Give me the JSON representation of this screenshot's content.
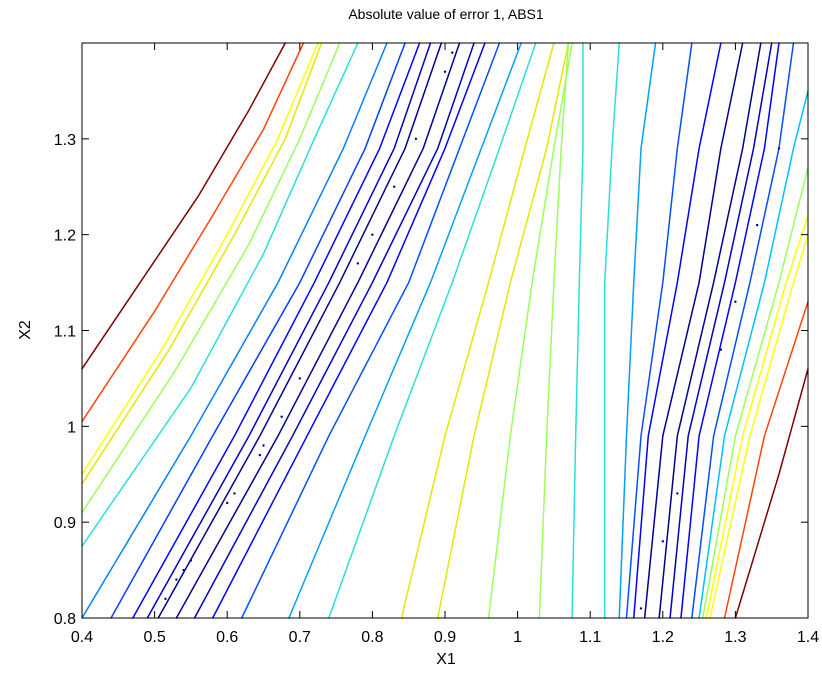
{
  "chart_data": {
    "type": "contour",
    "title": "Absolute value of error 1, ABS1",
    "xlabel": "X1",
    "ylabel": "X2",
    "xlim": [
      0.4,
      1.4
    ],
    "ylim": [
      0.8,
      1.4
    ],
    "x_ticks": [
      0.4,
      0.5,
      0.6,
      0.7,
      0.8,
      0.9,
      1,
      1.1,
      1.2,
      1.3,
      1.4
    ],
    "x_tick_labels": [
      "0.4",
      "0.5",
      "0.6",
      "0.7",
      "0.8",
      "0.9",
      "1",
      "1.1",
      "1.2",
      "1.3",
      "1.4"
    ],
    "y_ticks": [
      0.8,
      0.9,
      1,
      1.1,
      1.2,
      1.3
    ],
    "y_tick_labels": [
      "0.8",
      "0.9",
      "1",
      "1.1",
      "1.2",
      "1.3"
    ],
    "grid": false,
    "colormap": "jet",
    "series": [
      {
        "color": "#7f0000",
        "points": [
          [
            0.4,
            1.06
          ],
          [
            0.48,
            1.15
          ],
          [
            0.56,
            1.24
          ],
          [
            0.63,
            1.33
          ],
          [
            0.68,
            1.4
          ]
        ]
      },
      {
        "color": "#ff4500",
        "points": [
          [
            0.4,
            1.005
          ],
          [
            0.5,
            1.12
          ],
          [
            0.58,
            1.22
          ],
          [
            0.65,
            1.31
          ],
          [
            0.705,
            1.4
          ]
        ]
      },
      {
        "color": "#ffff00",
        "points": [
          [
            0.4,
            0.95
          ],
          [
            0.51,
            1.08
          ],
          [
            0.6,
            1.2
          ],
          [
            0.67,
            1.3
          ],
          [
            0.725,
            1.4
          ]
        ]
      },
      {
        "color": "#e6e600",
        "points": [
          [
            0.4,
            0.94
          ],
          [
            0.52,
            1.08
          ],
          [
            0.61,
            1.2
          ],
          [
            0.68,
            1.3
          ],
          [
            0.73,
            1.4
          ]
        ]
      },
      {
        "color": "#9bff5b",
        "points": [
          [
            0.4,
            0.91
          ],
          [
            0.53,
            1.06
          ],
          [
            0.63,
            1.19
          ],
          [
            0.7,
            1.3
          ],
          [
            0.755,
            1.4
          ]
        ]
      },
      {
        "color": "#28e0d8",
        "points": [
          [
            0.4,
            0.875
          ],
          [
            0.55,
            1.04
          ],
          [
            0.65,
            1.18
          ],
          [
            0.72,
            1.3
          ],
          [
            0.78,
            1.4
          ]
        ]
      },
      {
        "color": "#0080ff",
        "points": [
          [
            0.4,
            0.8
          ],
          [
            0.55,
            0.99
          ],
          [
            0.67,
            1.15
          ],
          [
            0.76,
            1.29
          ],
          [
            0.82,
            1.4
          ]
        ]
      },
      {
        "color": "#0040ff",
        "points": [
          [
            0.44,
            0.8
          ],
          [
            0.58,
            0.99
          ],
          [
            0.7,
            1.15
          ],
          [
            0.79,
            1.29
          ],
          [
            0.845,
            1.4
          ]
        ]
      },
      {
        "color": "#0000ff",
        "points": [
          [
            0.47,
            0.8
          ],
          [
            0.61,
            0.99
          ],
          [
            0.72,
            1.15
          ],
          [
            0.81,
            1.29
          ],
          [
            0.865,
            1.4
          ]
        ]
      },
      {
        "color": "#0000c0",
        "points": [
          [
            0.49,
            0.8
          ],
          [
            0.63,
            0.99
          ],
          [
            0.74,
            1.15
          ],
          [
            0.83,
            1.29
          ],
          [
            0.88,
            1.4
          ]
        ]
      },
      {
        "color": "#00008f",
        "points": [
          [
            0.505,
            0.8
          ],
          [
            0.645,
            0.99
          ],
          [
            0.755,
            1.15
          ],
          [
            0.845,
            1.29
          ],
          [
            0.895,
            1.4
          ]
        ]
      },
      {
        "color": "#00008f",
        "points": [
          [
            0.53,
            0.8
          ],
          [
            0.67,
            0.99
          ],
          [
            0.78,
            1.15
          ],
          [
            0.87,
            1.29
          ],
          [
            0.92,
            1.4
          ]
        ]
      },
      {
        "color": "#0000c0",
        "points": [
          [
            0.555,
            0.8
          ],
          [
            0.69,
            0.99
          ],
          [
            0.8,
            1.15
          ],
          [
            0.89,
            1.29
          ],
          [
            0.94,
            1.4
          ]
        ]
      },
      {
        "color": "#0000ff",
        "points": [
          [
            0.58,
            0.8
          ],
          [
            0.71,
            0.99
          ],
          [
            0.82,
            1.15
          ],
          [
            0.9,
            1.29
          ],
          [
            0.955,
            1.4
          ]
        ]
      },
      {
        "color": "#0050ff",
        "points": [
          [
            0.62,
            0.8
          ],
          [
            0.74,
            0.99
          ],
          [
            0.85,
            1.15
          ],
          [
            0.92,
            1.29
          ],
          [
            0.975,
            1.4
          ]
        ]
      },
      {
        "color": "#00a0ff",
        "points": [
          [
            0.685,
            0.8
          ],
          [
            0.79,
            0.99
          ],
          [
            0.88,
            1.15
          ],
          [
            0.95,
            1.29
          ],
          [
            1.005,
            1.4
          ]
        ]
      },
      {
        "color": "#28e0d8",
        "points": [
          [
            0.74,
            0.8
          ],
          [
            0.83,
            0.99
          ],
          [
            0.91,
            1.15
          ],
          [
            0.975,
            1.29
          ],
          [
            1.025,
            1.4
          ]
        ]
      },
      {
        "color": "#e6e600",
        "points": [
          [
            0.84,
            0.8
          ],
          [
            0.9,
            0.99
          ],
          [
            0.96,
            1.15
          ],
          [
            1.01,
            1.29
          ],
          [
            1.05,
            1.4
          ]
        ]
      },
      {
        "color": "#e6e600",
        "points": [
          [
            0.89,
            0.8
          ],
          [
            0.94,
            0.99
          ],
          [
            0.99,
            1.15
          ],
          [
            1.04,
            1.29
          ],
          [
            1.07,
            1.4
          ]
        ]
      },
      {
        "color": "#9bff5b",
        "points": [
          [
            0.96,
            0.8
          ],
          [
            0.99,
            0.99
          ],
          [
            1.02,
            1.15
          ],
          [
            1.05,
            1.29
          ],
          [
            1.075,
            1.4
          ]
        ]
      },
      {
        "color": "#9bff5b",
        "points": [
          [
            1.03,
            0.8
          ],
          [
            1.04,
            0.99
          ],
          [
            1.05,
            1.15
          ],
          [
            1.06,
            1.29
          ],
          [
            1.07,
            1.4
          ]
        ]
      },
      {
        "color": "#28e0d8",
        "points": [
          [
            1.075,
            0.8
          ],
          [
            1.08,
            0.99
          ],
          [
            1.085,
            1.15
          ],
          [
            1.09,
            1.29
          ],
          [
            1.09,
            1.4
          ]
        ]
      },
      {
        "color": "#28e0d8",
        "points": [
          [
            1.12,
            0.8
          ],
          [
            1.12,
            0.99
          ],
          [
            1.12,
            1.15
          ],
          [
            1.13,
            1.29
          ],
          [
            1.14,
            1.4
          ]
        ]
      },
      {
        "color": "#00a0ff",
        "points": [
          [
            1.14,
            0.8
          ],
          [
            1.15,
            0.99
          ],
          [
            1.16,
            1.15
          ],
          [
            1.17,
            1.29
          ],
          [
            1.19,
            1.4
          ]
        ]
      },
      {
        "color": "#0050ff",
        "points": [
          [
            1.15,
            0.8
          ],
          [
            1.17,
            0.99
          ],
          [
            1.2,
            1.15
          ],
          [
            1.22,
            1.29
          ],
          [
            1.24,
            1.4
          ]
        ]
      },
      {
        "color": "#0000ff",
        "points": [
          [
            1.16,
            0.8
          ],
          [
            1.18,
            0.99
          ],
          [
            1.22,
            1.15
          ],
          [
            1.25,
            1.29
          ],
          [
            1.28,
            1.4
          ]
        ]
      },
      {
        "color": "#00008f",
        "points": [
          [
            1.175,
            0.8
          ],
          [
            1.2,
            0.99
          ],
          [
            1.25,
            1.15
          ],
          [
            1.28,
            1.29
          ],
          [
            1.31,
            1.4
          ]
        ]
      },
      {
        "color": "#00008f",
        "points": [
          [
            1.195,
            0.8
          ],
          [
            1.22,
            0.99
          ],
          [
            1.27,
            1.15
          ],
          [
            1.31,
            1.29
          ],
          [
            1.335,
            1.4
          ]
        ]
      },
      {
        "color": "#0000c0",
        "points": [
          [
            1.21,
            0.8
          ],
          [
            1.235,
            0.99
          ],
          [
            1.285,
            1.15
          ],
          [
            1.325,
            1.29
          ],
          [
            1.35,
            1.4
          ]
        ]
      },
      {
        "color": "#0000ff",
        "points": [
          [
            1.225,
            0.8
          ],
          [
            1.25,
            0.99
          ],
          [
            1.3,
            1.15
          ],
          [
            1.34,
            1.29
          ],
          [
            1.36,
            1.4
          ]
        ]
      },
      {
        "color": "#0050ff",
        "points": [
          [
            1.24,
            0.8
          ],
          [
            1.27,
            0.99
          ],
          [
            1.32,
            1.15
          ],
          [
            1.36,
            1.29
          ],
          [
            1.38,
            1.4
          ]
        ]
      },
      {
        "color": "#00c0ff",
        "points": [
          [
            1.25,
            0.8
          ],
          [
            1.285,
            0.99
          ],
          [
            1.34,
            1.15
          ],
          [
            1.38,
            1.29
          ],
          [
            1.4,
            1.35
          ]
        ]
      },
      {
        "color": "#9bff5b",
        "points": [
          [
            1.255,
            0.8
          ],
          [
            1.3,
            0.99
          ],
          [
            1.36,
            1.15
          ],
          [
            1.4,
            1.27
          ]
        ]
      },
      {
        "color": "#ffff00",
        "points": [
          [
            1.26,
            0.8
          ],
          [
            1.31,
            0.99
          ],
          [
            1.37,
            1.15
          ],
          [
            1.4,
            1.22
          ]
        ]
      },
      {
        "color": "#ffff00",
        "points": [
          [
            1.265,
            0.8
          ],
          [
            1.32,
            0.99
          ],
          [
            1.38,
            1.15
          ],
          [
            1.4,
            1.2
          ]
        ]
      },
      {
        "color": "#ff4500",
        "points": [
          [
            1.285,
            0.8
          ],
          [
            1.34,
            0.99
          ],
          [
            1.4,
            1.13
          ]
        ]
      },
      {
        "color": "#7f0000",
        "points": [
          [
            1.3,
            0.8
          ],
          [
            1.36,
            0.95
          ],
          [
            1.4,
            1.06
          ]
        ]
      }
    ],
    "points": [
      {
        "color": "#00008f",
        "x": 0.515,
        "y": 0.82
      },
      {
        "color": "#00008f",
        "x": 0.53,
        "y": 0.84
      },
      {
        "color": "#00008f",
        "x": 0.54,
        "y": 0.85
      },
      {
        "color": "#00008f",
        "x": 0.55,
        "y": 0.86
      },
      {
        "color": "#00008f",
        "x": 0.6,
        "y": 0.92
      },
      {
        "color": "#00008f",
        "x": 0.61,
        "y": 0.93
      },
      {
        "color": "#00008f",
        "x": 0.645,
        "y": 0.97
      },
      {
        "color": "#00008f",
        "x": 0.65,
        "y": 0.98
      },
      {
        "color": "#00008f",
        "x": 0.675,
        "y": 1.01
      },
      {
        "color": "#00008f",
        "x": 0.7,
        "y": 1.05
      },
      {
        "color": "#00008f",
        "x": 0.78,
        "y": 1.17
      },
      {
        "color": "#00008f",
        "x": 0.8,
        "y": 1.2
      },
      {
        "color": "#00008f",
        "x": 0.83,
        "y": 1.25
      },
      {
        "color": "#00008f",
        "x": 0.86,
        "y": 1.3
      },
      {
        "color": "#00008f",
        "x": 0.9,
        "y": 1.37
      },
      {
        "color": "#00008f",
        "x": 0.91,
        "y": 1.39
      },
      {
        "color": "#00008f",
        "x": 1.17,
        "y": 0.81
      },
      {
        "color": "#00008f",
        "x": 1.2,
        "y": 0.88
      },
      {
        "color": "#00008f",
        "x": 1.22,
        "y": 0.93
      },
      {
        "color": "#00008f",
        "x": 1.28,
        "y": 1.08
      },
      {
        "color": "#00008f",
        "x": 1.3,
        "y": 1.13
      },
      {
        "color": "#00008f",
        "x": 1.33,
        "y": 1.21
      },
      {
        "color": "#00008f",
        "x": 1.36,
        "y": 1.29
      }
    ]
  }
}
